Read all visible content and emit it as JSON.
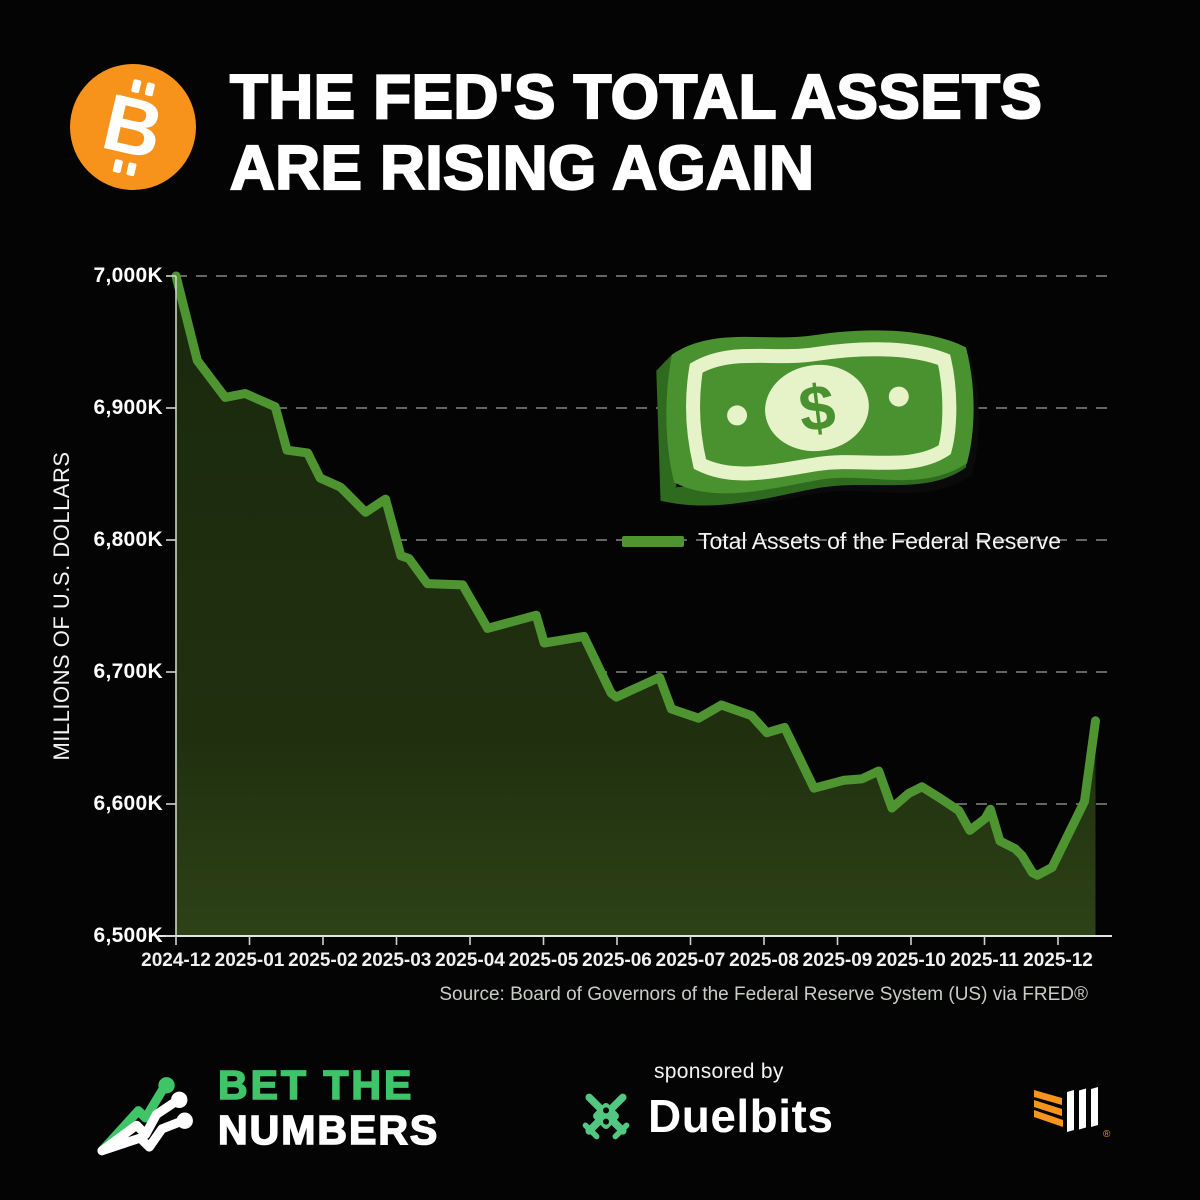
{
  "header": {
    "title_line1": "THE FED'S TOTAL ASSETS",
    "title_line2": "ARE RISING AGAIN",
    "bitcoin_color": "#f7931a"
  },
  "chart_data": {
    "type": "area",
    "title": "The Fed's total assets are rising again",
    "ylabel": "MILLIONS OF U.S. DOLLARS",
    "xlabel": "",
    "ylim": [
      6500,
      7000
    ],
    "xlim_month_index": [
      0,
      12.75
    ],
    "grid": "dashed horizontal gridlines",
    "legend_position": "center-right above line",
    "y_ticks": [
      {
        "label": "7,000K",
        "value": 7000
      },
      {
        "label": "6,900K",
        "value": 6900
      },
      {
        "label": "6,800K",
        "value": 6800
      },
      {
        "label": "6,700K",
        "value": 6700
      },
      {
        "label": "6,600K",
        "value": 6600
      },
      {
        "label": "6,500K",
        "value": 6500
      }
    ],
    "x_labels": [
      "2024-12",
      "2025-01",
      "2025-02",
      "2025-03",
      "2025-04",
      "2025-05",
      "2025-06",
      "2025-07",
      "2025-08",
      "2025-09",
      "2025-10",
      "2025-11",
      "2025-12"
    ],
    "series": [
      {
        "name": "Total Assets of the Federal Reserve",
        "color": "#4e9430",
        "units": "thousands of millions of U.S. dollars (K)",
        "points": [
          [
            0.0,
            7000
          ],
          [
            0.29,
            6936
          ],
          [
            0.67,
            6908
          ],
          [
            0.94,
            6911
          ],
          [
            1.35,
            6901
          ],
          [
            1.51,
            6868
          ],
          [
            1.79,
            6866
          ],
          [
            1.96,
            6847
          ],
          [
            2.24,
            6840
          ],
          [
            2.58,
            6821
          ],
          [
            2.85,
            6831
          ],
          [
            3.06,
            6788
          ],
          [
            3.17,
            6786
          ],
          [
            3.42,
            6767
          ],
          [
            3.9,
            6766
          ],
          [
            4.24,
            6733
          ],
          [
            4.9,
            6743
          ],
          [
            5.01,
            6722
          ],
          [
            5.55,
            6727
          ],
          [
            5.92,
            6684
          ],
          [
            5.99,
            6681
          ],
          [
            6.58,
            6696
          ],
          [
            6.74,
            6672
          ],
          [
            7.11,
            6665
          ],
          [
            7.42,
            6675
          ],
          [
            7.83,
            6667
          ],
          [
            8.04,
            6654
          ],
          [
            8.28,
            6658
          ],
          [
            8.68,
            6612
          ],
          [
            9.09,
            6618
          ],
          [
            9.33,
            6619
          ],
          [
            9.56,
            6625
          ],
          [
            9.74,
            6597
          ],
          [
            9.97,
            6608
          ],
          [
            10.15,
            6613
          ],
          [
            10.38,
            6605
          ],
          [
            10.65,
            6595
          ],
          [
            10.8,
            6580
          ],
          [
            11.01,
            6589
          ],
          [
            11.08,
            6596
          ],
          [
            11.21,
            6572
          ],
          [
            11.42,
            6566
          ],
          [
            11.51,
            6561
          ],
          [
            11.65,
            6548
          ],
          [
            11.72,
            6546
          ],
          [
            11.92,
            6552
          ],
          [
            12.36,
            6602
          ],
          [
            12.51,
            6663
          ]
        ]
      }
    ],
    "source": "Source: Board of Governors of the Federal Reserve System (US) via FRED®"
  },
  "footer": {
    "brand_line1": "BET THE",
    "brand_line2": "NUMBERS",
    "brand_green": "#3fc468",
    "sponsored_by": "sponsored by",
    "sponsor_name": "Duelbits",
    "registered_mark": "®"
  },
  "colors": {
    "background": "#040404",
    "line_green": "#4e9430",
    "area_fill_top": "#1a290d",
    "area_fill_bottom": "#2d4217",
    "gridline": "#9aa094",
    "axis": "#d9ddd5",
    "bill_green": "#4a9130",
    "bill_pale": "#e6f2c8",
    "bill_edge_dark": "#2f6b1f",
    "bitcoin_orange": "#f7931a",
    "logo_orange": "#f7941d"
  }
}
